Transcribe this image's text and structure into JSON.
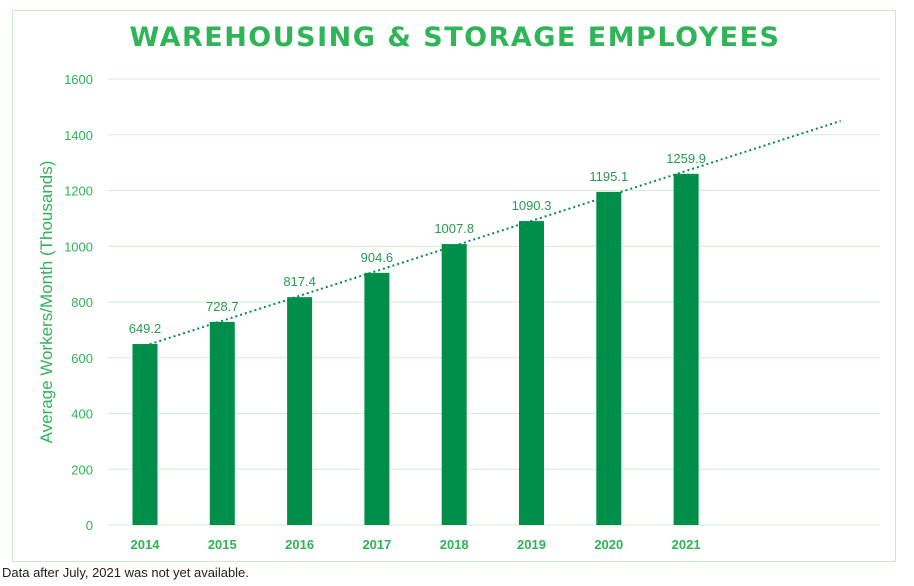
{
  "chart_data": {
    "type": "bar",
    "title": "WAREHOUSING & STORAGE EMPLOYEES",
    "ylabel": "Average Workers/Month (Thousands)",
    "xlabel": "",
    "categories": [
      "2014",
      "2015",
      "2016",
      "2017",
      "2018",
      "2019",
      "2020",
      "2021"
    ],
    "values": [
      649.2,
      728.7,
      817.4,
      904.6,
      1007.8,
      1090.3,
      1195.1,
      1259.9
    ],
    "data_labels": [
      "649.2",
      "728.7",
      "817.4",
      "904.6",
      "1007.8",
      "1090.3",
      "1195.1",
      "1259.9"
    ],
    "ylim": [
      0,
      1600
    ],
    "yticks": [
      "0",
      "200",
      "400",
      "600",
      "800",
      "1000",
      "1200",
      "1400",
      "1600"
    ],
    "grid": true,
    "trendline": {
      "style": "dotted",
      "type": "linear"
    },
    "colors": {
      "bar": "#008f49",
      "text": "#2fb457",
      "grid": "#d3ebd6",
      "trend": "#008f49"
    }
  },
  "footnote": "Data after July, 2021 was not yet available."
}
